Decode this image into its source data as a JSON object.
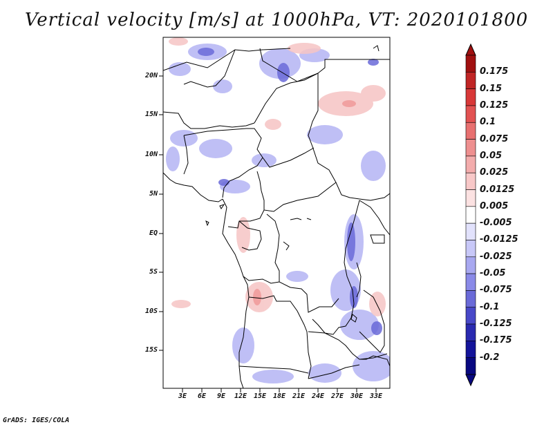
{
  "title": "Vertical velocity [m/s] at 1000hPa, VT: 2020101800",
  "credit": "GrADS: IGES/COLA",
  "lat_labels": [
    "20N",
    "15N",
    "10N",
    "5N",
    "EQ",
    "5S",
    "10S",
    "15S"
  ],
  "lon_labels": [
    "3E",
    "6E",
    "9E",
    "12E",
    "15E",
    "18E",
    "21E",
    "24E",
    "27E",
    "30E",
    "33E"
  ],
  "colorbar": {
    "labels": [
      "0.175",
      "0.15",
      "0.125",
      "0.1",
      "0.075",
      "0.05",
      "0.025",
      "0.0125",
      "0.005",
      "-0.005",
      "-0.0125",
      "-0.025",
      "-0.05",
      "-0.075",
      "-0.1",
      "-0.125",
      "-0.175",
      "-0.2"
    ],
    "colors": [
      "#a01010",
      "#c02525",
      "#d83838",
      "#e25252",
      "#e87070",
      "#ee8f8f",
      "#f3acac",
      "#f8c8c8",
      "#fce2e2",
      "#ffffff",
      "#e2e2fc",
      "#c8c8f8",
      "#a8a8f0",
      "#8a8ae8",
      "#6a6ad8",
      "#4848c8",
      "#2a2ab0",
      "#14149a",
      "#080880"
    ],
    "arrow_top_color": "#a01010",
    "arrow_bottom_color": "#080880"
  }
}
